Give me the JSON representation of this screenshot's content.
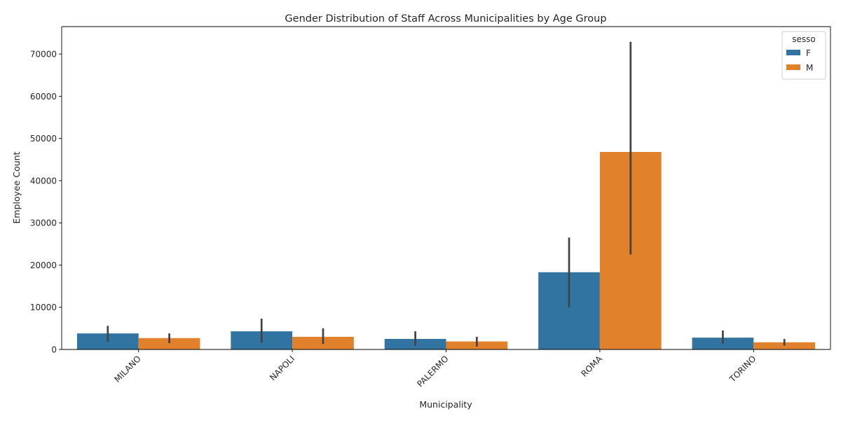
{
  "chart_data": {
    "type": "bar",
    "title": "Gender Distribution of Staff Across Municipalities by Age Group",
    "xlabel": "Municipality",
    "ylabel": "Employee Count",
    "categories": [
      "MILANO",
      "NAPOLI",
      "PALERMO",
      "ROMA",
      "TORINO"
    ],
    "ylim": [
      0,
      76500
    ],
    "yticks": [
      0,
      10000,
      20000,
      30000,
      40000,
      50000,
      60000,
      70000
    ],
    "legend": {
      "title": "sesso",
      "placement": "top-right"
    },
    "series": [
      {
        "name": "F",
        "color": "#3274a1",
        "values": [
          3800,
          4300,
          2500,
          18300,
          2800
        ],
        "err_low": [
          1800,
          1600,
          900,
          10000,
          1300
        ],
        "err_high": [
          5600,
          7300,
          4300,
          26500,
          4500
        ]
      },
      {
        "name": "M",
        "color": "#e1812c",
        "values": [
          2700,
          3000,
          1900,
          46800,
          1700
        ],
        "err_low": [
          1500,
          1300,
          700,
          22500,
          900
        ],
        "err_high": [
          3800,
          5000,
          3000,
          72900,
          2500
        ]
      }
    ],
    "error_bar_color": "#424242",
    "grid": false
  }
}
